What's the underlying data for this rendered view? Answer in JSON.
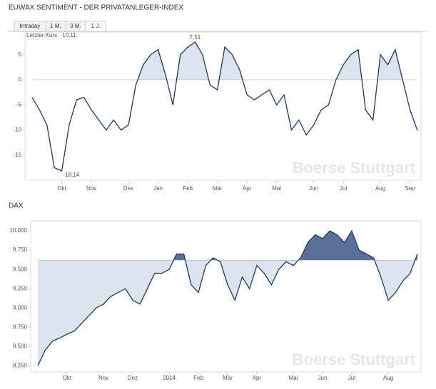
{
  "tabs": [
    "Intraday",
    "1 M.",
    "3 M.",
    "1 J."
  ],
  "active_tab": 3,
  "watermark": "Boerse Stuttgart",
  "chart_data": [
    {
      "type": "line",
      "title": "EUWAX SENTIMENT - DER PRIVATANLEGER-INDEX",
      "annotations": [
        "Letzter Kurs: -10,11",
        "7,51",
        "-18,14"
      ],
      "categories": [
        null,
        null,
        null,
        null,
        "Okt",
        null,
        null,
        null,
        "Nov",
        null,
        null,
        null,
        null,
        "Dez",
        null,
        null,
        null,
        "Jan",
        null,
        null,
        null,
        "Feb",
        null,
        null,
        null,
        "Mär",
        null,
        null,
        null,
        "Apr",
        null,
        null,
        null,
        "Mai",
        null,
        null,
        null,
        null,
        "Jun",
        null,
        null,
        null,
        "Jul",
        null,
        null,
        null,
        null,
        "Aug",
        null,
        null,
        null,
        "Sep",
        null
      ],
      "values": [
        -3.5,
        -6,
        -9,
        -17.5,
        -18.14,
        -9,
        -4,
        -3.5,
        -6,
        -8,
        -10,
        -8,
        -10,
        -9,
        -1,
        3,
        5,
        6,
        1,
        -5,
        5,
        6.5,
        7.51,
        5,
        -1,
        -2,
        6.5,
        5,
        2,
        -3,
        -4,
        -3,
        -2,
        -5,
        -3,
        -10,
        -8,
        -11,
        -9,
        -6,
        -5,
        0,
        3,
        5,
        6,
        -6,
        -8,
        5,
        3,
        6,
        0,
        -6,
        -10.11
      ],
      "color": "#1f3a60",
      "baseline": 0,
      "fill_above": "#dde3ec",
      "ylim": [
        -20,
        9.5
      ],
      "yticks": [
        5,
        0,
        -5,
        -10,
        -15
      ]
    },
    {
      "type": "line",
      "title": "DAX",
      "categories": [
        null,
        null,
        null,
        null,
        "Okt",
        null,
        null,
        null,
        null,
        "Nov",
        null,
        null,
        null,
        "Dez",
        null,
        null,
        null,
        null,
        "2014",
        null,
        null,
        null,
        "Feb",
        null,
        null,
        null,
        "Mär",
        null,
        null,
        null,
        "Apr",
        null,
        null,
        null,
        null,
        "Mai",
        null,
        null,
        null,
        "Jun",
        null,
        null,
        null,
        "Jul",
        null,
        null,
        null,
        null,
        "Aug",
        null,
        null,
        null,
        null
      ],
      "values": [
        8250,
        8450,
        8570,
        8610,
        8660,
        8700,
        8800,
        8900,
        9000,
        9050,
        9150,
        9200,
        9250,
        9100,
        9050,
        9250,
        9450,
        9450,
        9500,
        9700,
        9700,
        9300,
        9200,
        9550,
        9650,
        9600,
        9300,
        9100,
        9400,
        9250,
        9550,
        9450,
        9300,
        9500,
        9600,
        9550,
        9650,
        9850,
        9950,
        9900,
        10000,
        9950,
        9850,
        10000,
        9750,
        9700,
        9650,
        9400,
        9100,
        9200,
        9350,
        9450,
        9700
      ],
      "color": "#1f3a60",
      "baseline": 9620,
      "fill_above": "#5b7099",
      "fill_below": "#dde3ec",
      "ylim": [
        8170,
        10130
      ],
      "yticks": [
        {
          "value": 10000,
          "label": "10.000"
        },
        {
          "value": 9750,
          "label": "9.750"
        },
        {
          "value": 9500,
          "label": "9.500"
        },
        {
          "value": 9250,
          "label": "9.250"
        },
        {
          "value": 9000,
          "label": "9.000"
        },
        {
          "value": 8750,
          "label": "8.750"
        },
        {
          "value": 8500,
          "label": "8.500"
        },
        {
          "value": 8250,
          "label": "8.250"
        }
      ]
    }
  ]
}
